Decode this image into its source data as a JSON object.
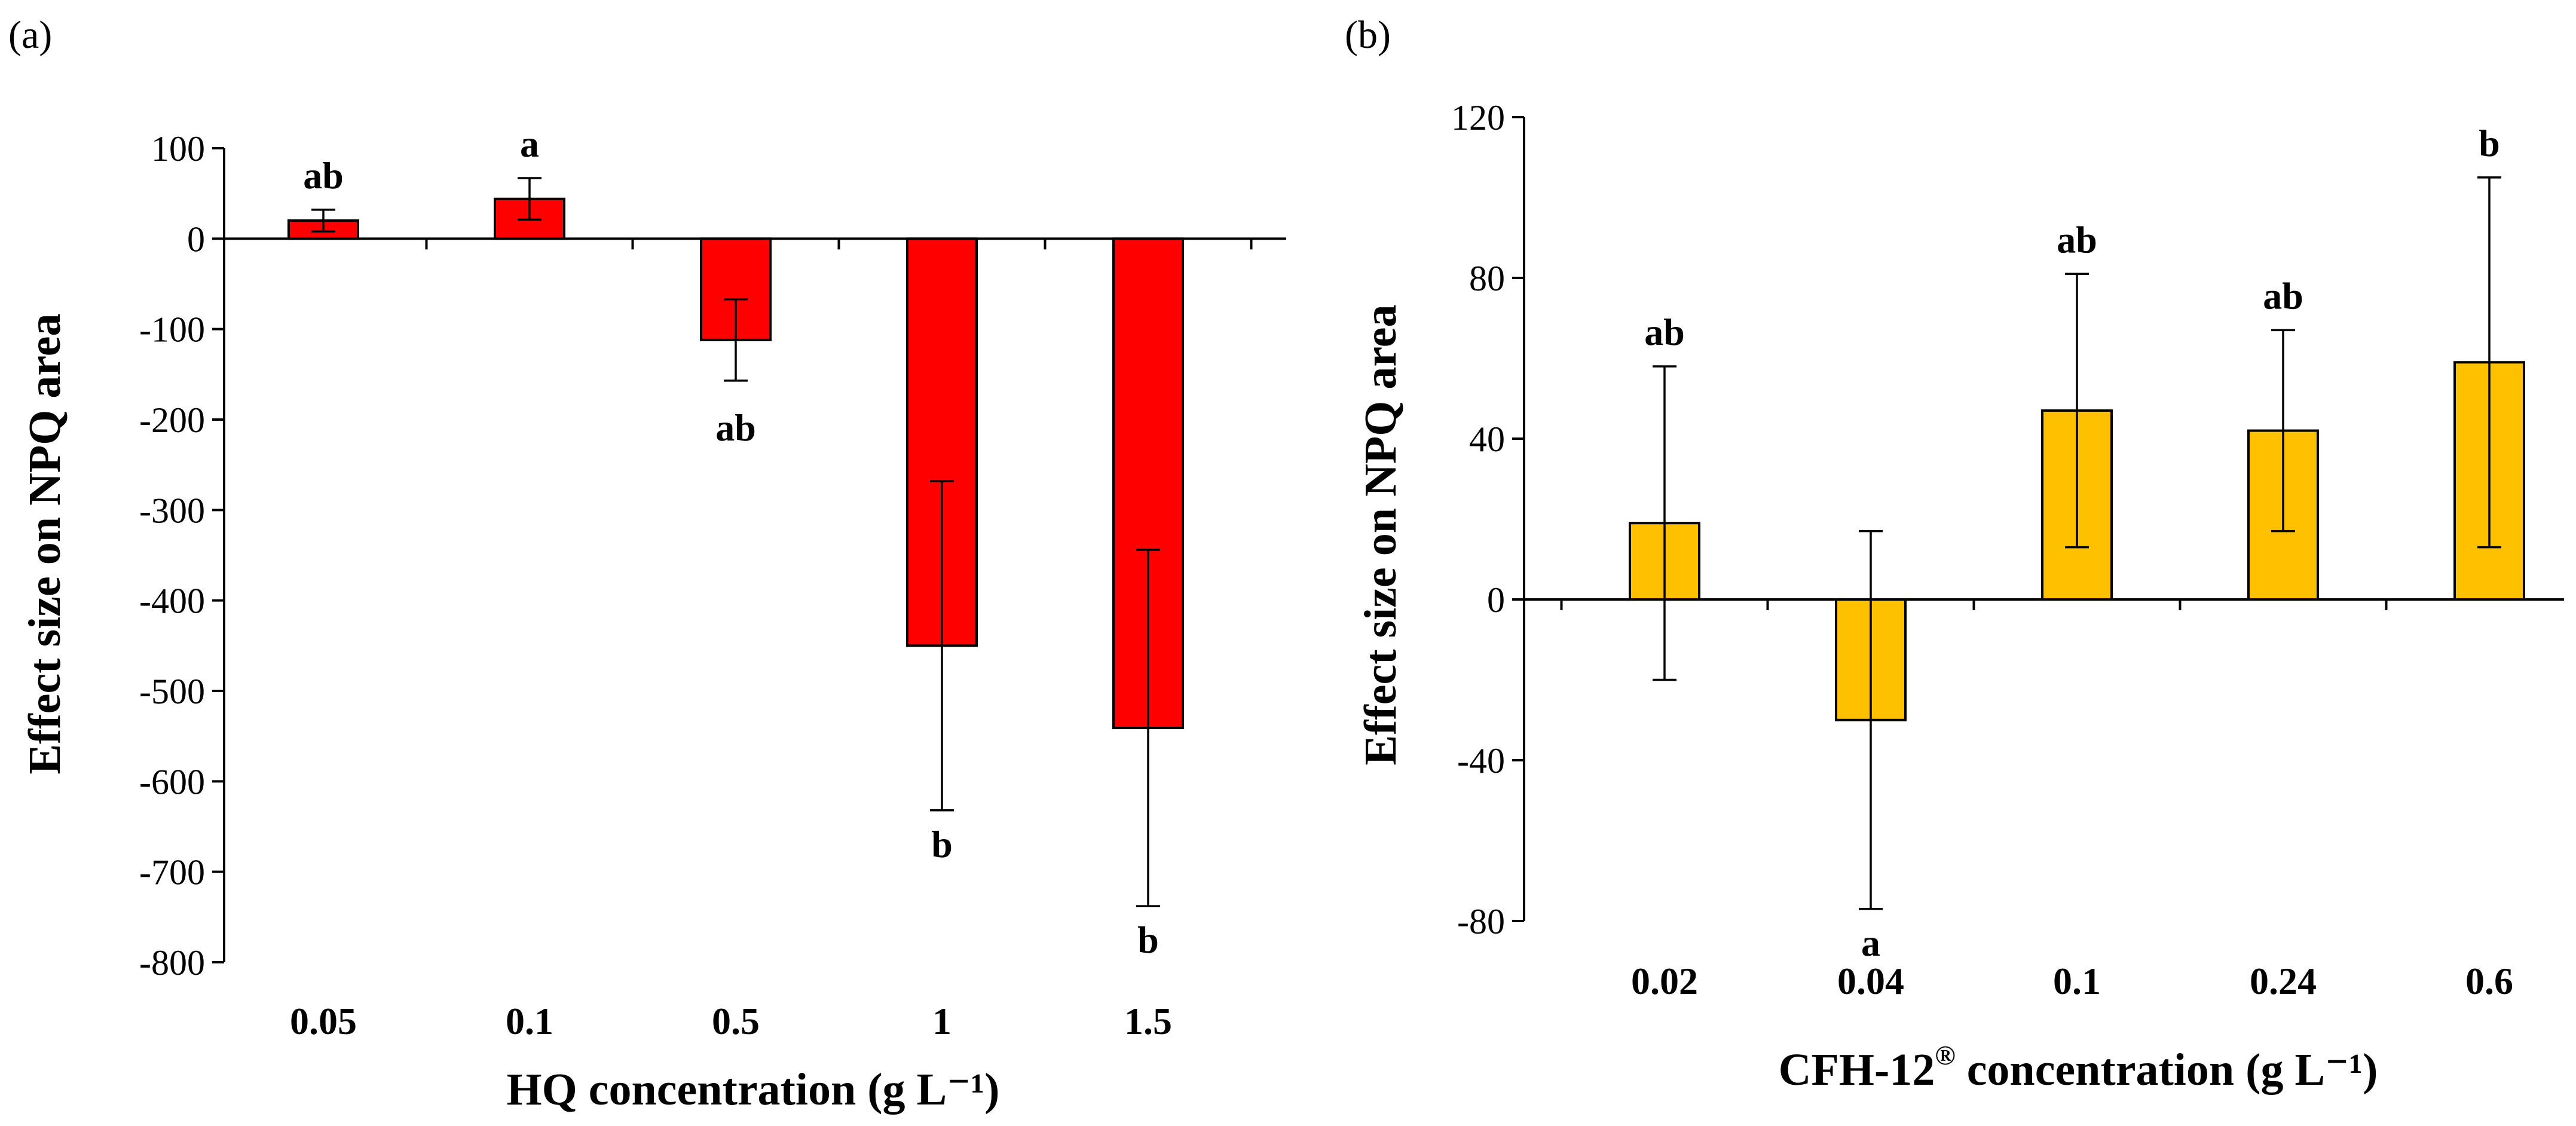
{
  "chart_data": [
    {
      "type": "bar",
      "panel_label": "(a)",
      "categories": [
        "0.05",
        "0.1",
        "0.5",
        "1",
        "1.5"
      ],
      "values": [
        20,
        44,
        -112,
        -450,
        -541
      ],
      "error": [
        12,
        23,
        45,
        182,
        197
      ],
      "significance": [
        "ab",
        "a",
        "ab",
        "b",
        "b"
      ],
      "ylim": [
        -800,
        100
      ],
      "yticks": [
        100,
        0,
        -100,
        -200,
        -300,
        -400,
        -500,
        -600,
        -700,
        -800
      ],
      "ytick_labels": [
        "100",
        "0",
        "-100",
        "-200",
        "-300",
        "-400",
        "-500",
        "-600",
        "-700",
        "-800"
      ],
      "xlabel": "HQ concentration (g L⁻¹)",
      "ylabel": "Effect size on NPQ area",
      "color": "#ff0000",
      "grid": false,
      "legend": false
    },
    {
      "type": "bar",
      "panel_label": "(b)",
      "categories": [
        "0.02",
        "0.04",
        "0.1",
        "0.24",
        "0.6"
      ],
      "values": [
        19,
        -30,
        47,
        42,
        59
      ],
      "error": [
        39,
        47,
        34,
        25,
        46
      ],
      "significance": [
        "ab",
        "a",
        "ab",
        "ab",
        "b"
      ],
      "ylim": [
        -80,
        120
      ],
      "yticks": [
        120,
        80,
        40,
        0,
        -40,
        -80
      ],
      "ytick_labels": [
        "120",
        "80",
        "40",
        "0",
        "-40",
        "-80"
      ],
      "xlabel_main": "CFH-12",
      "xlabel_sup": "®",
      "xlabel_tail": " concentration (g L⁻¹)",
      "ylabel": "Effect size on NPQ area",
      "color": "#ffc000",
      "grid": false,
      "legend": false
    }
  ]
}
